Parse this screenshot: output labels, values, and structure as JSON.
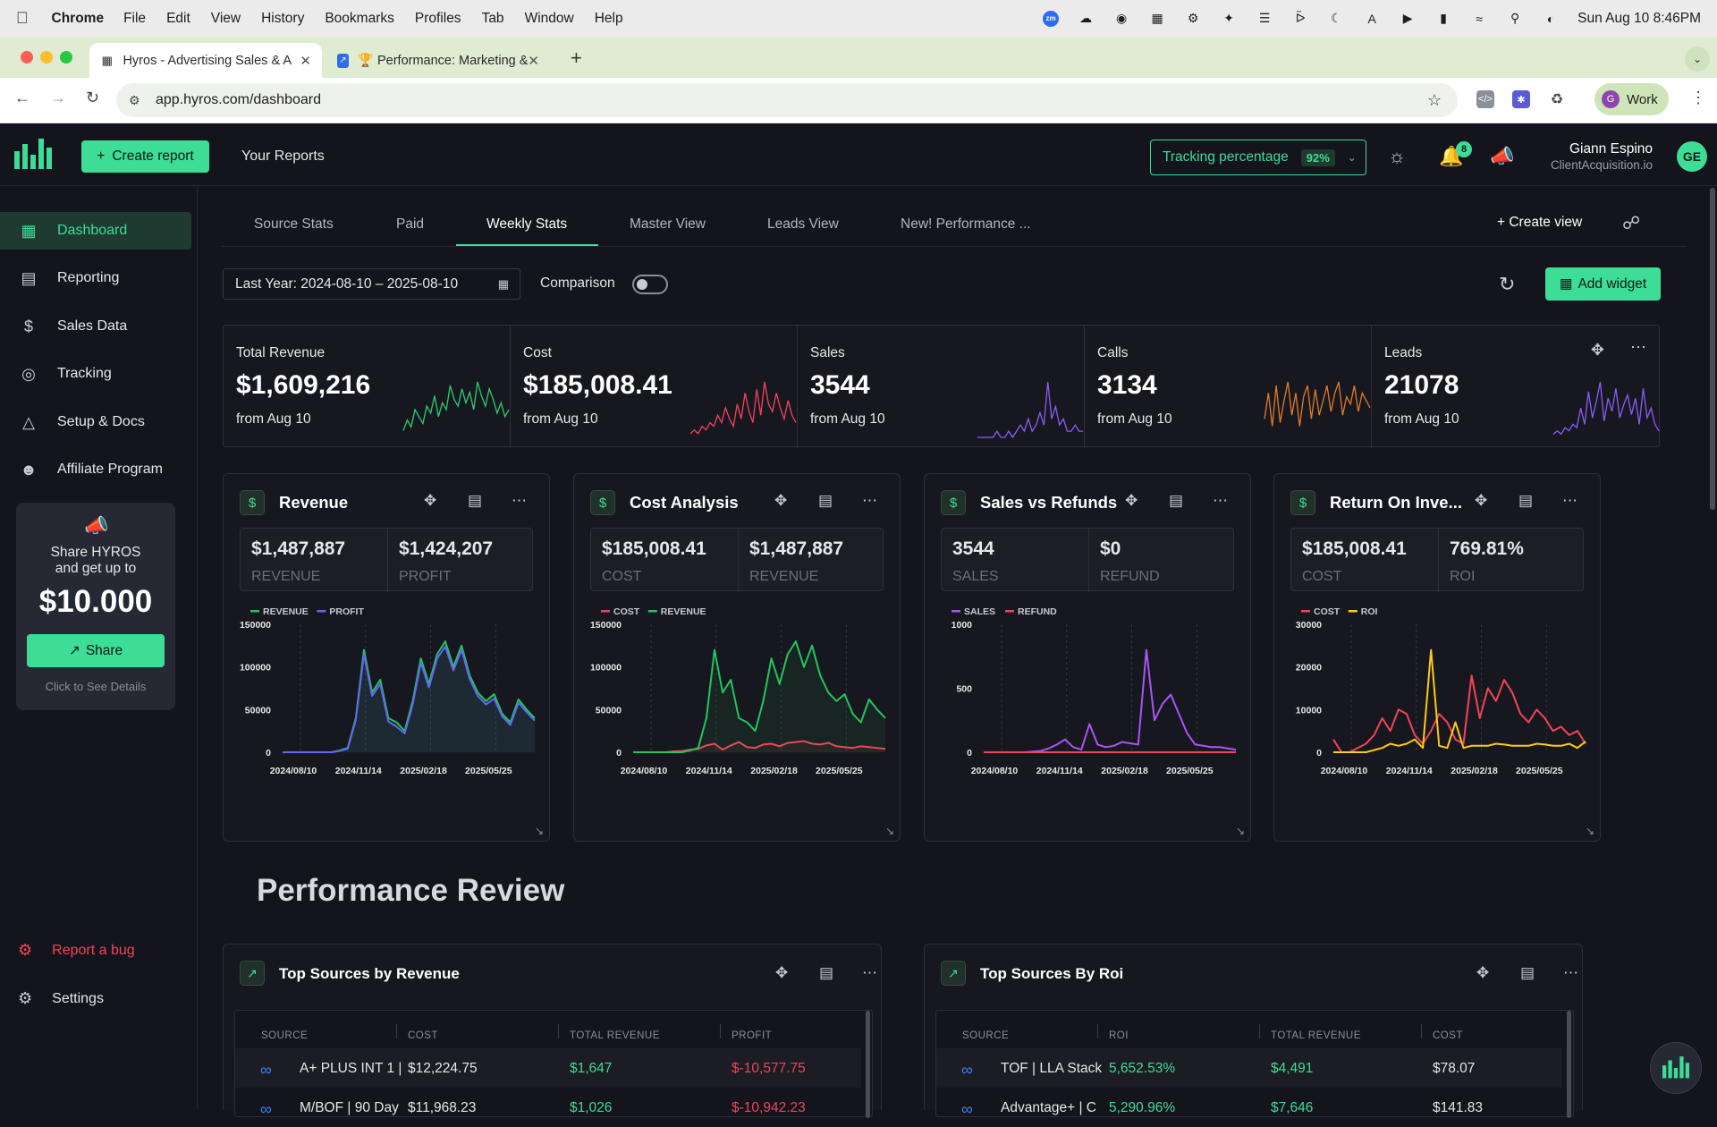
{
  "macos": {
    "app_name": "Chrome",
    "menus": [
      "File",
      "Edit",
      "View",
      "History",
      "Bookmarks",
      "Profiles",
      "Tab",
      "Window",
      "Help"
    ],
    "clock": "Sun Aug 10  8:46PM"
  },
  "browser": {
    "tabs": [
      {
        "title": "Hyros - Advertising Sales & A",
        "favicon": "hyros-logo-icon"
      },
      {
        "title": "🏆 Performance: Marketing &",
        "favicon": "chart-icon"
      }
    ],
    "url": "app.hyros.com/dashboard",
    "profile_label": "Work",
    "profile_initial": "G"
  },
  "header": {
    "create_report": "Create report",
    "your_reports": "Your Reports",
    "tracking_label": "Tracking percentage",
    "tracking_value": "92%",
    "notification_count": "8",
    "user_name": "Giann Espino",
    "user_company": "ClientAcquisition.io",
    "user_initials": "GE"
  },
  "sidebar": {
    "items": [
      {
        "label": "Dashboard",
        "icon": "grid-icon",
        "active": true
      },
      {
        "label": "Reporting",
        "icon": "report-icon"
      },
      {
        "label": "Sales Data",
        "icon": "dollar-icon"
      },
      {
        "label": "Tracking",
        "icon": "target-icon"
      },
      {
        "label": "Setup & Docs",
        "icon": "graduation-cap-icon"
      },
      {
        "label": "Affiliate Program",
        "icon": "users-icon"
      }
    ],
    "share_card": {
      "line1": "Share HYROS",
      "line2": "and get up to",
      "amount": "$10.000",
      "button": "Share",
      "hint": "Click to See Details"
    },
    "report_bug": "Report a bug",
    "settings": "Settings"
  },
  "view_tabs": [
    "Source Stats",
    "Paid",
    "Weekly Stats",
    "Master View",
    "Leads View",
    "New! Performance ..."
  ],
  "active_view_tab": "Weekly Stats",
  "create_view": "Create view",
  "date_range": "Last Year: 2024-08-10 – 2025-08-10",
  "comparison_label": "Comparison",
  "comparison_enabled": false,
  "add_widget": "Add widget",
  "stats": [
    {
      "label": "Total Revenue",
      "value": "$1,609,216",
      "from": "from Aug 10",
      "color": "#2ecc71",
      "spark": [
        2,
        5,
        3,
        8,
        6,
        4,
        9,
        7,
        12,
        6,
        10,
        8,
        15,
        11,
        9,
        14,
        10,
        13,
        8,
        16,
        12,
        9,
        14,
        11,
        7,
        10,
        6,
        8
      ]
    },
    {
      "label": "Cost",
      "value": "$185,008.41",
      "from": "from Aug 10",
      "color": "#f0445a",
      "spark": [
        1,
        2,
        1,
        3,
        2,
        4,
        3,
        6,
        4,
        8,
        5,
        3,
        9,
        5,
        12,
        7,
        4,
        13,
        6,
        15,
        9,
        7,
        12,
        8,
        5,
        10,
        6,
        4
      ]
    },
    {
      "label": "Sales",
      "value": "3544",
      "from": "from Aug 10",
      "color": "#8b5cf6",
      "spark": [
        0,
        0,
        0,
        0,
        0,
        1,
        0,
        0,
        1,
        0,
        1,
        2,
        1,
        3,
        1,
        2,
        4,
        2,
        9,
        3,
        5,
        2,
        3,
        1,
        1,
        2,
        1,
        1
      ]
    },
    {
      "label": "Calls",
      "value": "3134",
      "from": "from Aug 10",
      "color": "#e07b2a",
      "spark": [
        5,
        12,
        3,
        14,
        4,
        10,
        15,
        6,
        12,
        3,
        11,
        14,
        5,
        13,
        6,
        10,
        14,
        7,
        12,
        15,
        6,
        11,
        9,
        14,
        7,
        12,
        10,
        8
      ]
    },
    {
      "label": "Leads",
      "value": "21078",
      "from": "from Aug 10",
      "color": "#8b5cf6",
      "spark": [
        1,
        2,
        1,
        3,
        2,
        4,
        3,
        9,
        4,
        14,
        6,
        11,
        17,
        5,
        12,
        8,
        15,
        6,
        10,
        13,
        7,
        12,
        4,
        15,
        6,
        9,
        4,
        2
      ]
    }
  ],
  "widgets": [
    {
      "title": "Revenue",
      "kpis": [
        {
          "value": "$1,487,887",
          "label": "Revenue"
        },
        {
          "value": "$1,424,207",
          "label": "Profit"
        }
      ],
      "chart_data": {
        "type": "area",
        "x_ticks": [
          "2024/08/10",
          "2024/11/14",
          "2025/02/18",
          "2025/05/25"
        ],
        "ylim": [
          0,
          150000
        ],
        "y_ticks": [
          0,
          50000,
          100000,
          150000
        ],
        "series": [
          {
            "name": "REVENUE",
            "color": "#22c55e",
            "values": [
              0,
              0,
              0,
              0,
              0,
              0,
              0,
              2000,
              5000,
              40000,
              120000,
              70000,
              85000,
              40000,
              35000,
              25000,
              60000,
              110000,
              80000,
              115000,
              130000,
              100000,
              125000,
              90000,
              70000,
              60000,
              68000,
              45000,
              35000,
              62000,
              50000,
              40000
            ]
          },
          {
            "name": "PROFIT",
            "color": "#6366f1",
            "values": [
              0,
              0,
              0,
              0,
              0,
              0,
              0,
              1500,
              4000,
              38000,
              115000,
              66000,
              80000,
              36000,
              30000,
              22000,
              56000,
              105000,
              76000,
              110000,
              124000,
              96000,
              120000,
              86000,
              66000,
              56000,
              63000,
              42000,
              32000,
              58000,
              47000,
              37000
            ]
          }
        ]
      }
    },
    {
      "title": "Cost Analysis",
      "kpis": [
        {
          "value": "$185,008.41",
          "label": "Cost"
        },
        {
          "value": "$1,487,887",
          "label": "Revenue"
        }
      ],
      "chart_data": {
        "type": "area",
        "x_ticks": [
          "2024/08/10",
          "2024/11/14",
          "2025/02/18",
          "2025/05/25"
        ],
        "ylim": [
          0,
          150000
        ],
        "y_ticks": [
          0,
          50000,
          100000,
          150000
        ],
        "series": [
          {
            "name": "COST",
            "color": "#f0445a",
            "values": [
              0,
              0,
              0,
              0,
              0,
              1000,
              1500,
              3000,
              4000,
              8000,
              10000,
              3000,
              8000,
              12000,
              6000,
              5000,
              9000,
              10000,
              7000,
              11000,
              12000,
              13000,
              10000,
              9000,
              11000,
              7000,
              6000,
              5000,
              7000,
              6000,
              5000,
              4000
            ]
          },
          {
            "name": "REVENUE",
            "color": "#22c55e",
            "values": [
              0,
              0,
              0,
              0,
              0,
              0,
              0,
              2000,
              5000,
              40000,
              120000,
              70000,
              85000,
              40000,
              35000,
              25000,
              60000,
              110000,
              80000,
              115000,
              130000,
              100000,
              125000,
              90000,
              70000,
              60000,
              68000,
              45000,
              35000,
              62000,
              50000,
              40000
            ]
          }
        ]
      }
    },
    {
      "title": "Sales vs Refunds",
      "kpis": [
        {
          "value": "3544",
          "label": "Sales"
        },
        {
          "value": "$0",
          "label": "Refund"
        }
      ],
      "chart_data": {
        "type": "line",
        "x_ticks": [
          "2024/08/10",
          "2024/11/14",
          "2025/02/18",
          "2025/05/25"
        ],
        "ylim": [
          0,
          1000
        ],
        "y_ticks": [
          0,
          500,
          1000
        ],
        "series": [
          {
            "name": "SALES",
            "color": "#a855f7",
            "values": [
              0,
              0,
              0,
              0,
              0,
              0,
              5,
              10,
              30,
              60,
              100,
              40,
              20,
              220,
              60,
              40,
              50,
              80,
              70,
              60,
              800,
              250,
              380,
              450,
              300,
              150,
              60,
              50,
              40,
              40,
              30,
              20
            ]
          },
          {
            "name": "REFUND",
            "color": "#f0445a",
            "values": [
              0,
              0,
              0,
              0,
              0,
              0,
              0,
              0,
              0,
              0,
              0,
              0,
              0,
              0,
              0,
              0,
              0,
              0,
              0,
              0,
              0,
              0,
              0,
              0,
              0,
              0,
              0,
              0,
              0,
              0,
              0,
              0
            ]
          }
        ]
      }
    },
    {
      "title": "Return On Inve...",
      "kpis": [
        {
          "value": "$185,008.41",
          "label": "Cost"
        },
        {
          "value": "769.81%",
          "label": "ROI"
        }
      ],
      "chart_data": {
        "type": "line",
        "x_ticks": [
          "2024/08/10",
          "2024/11/14",
          "2025/02/18",
          "2025/05/25"
        ],
        "ylim": [
          0,
          30000
        ],
        "y_ticks": [
          0,
          10000,
          20000,
          30000
        ],
        "series": [
          {
            "name": "COST",
            "color": "#f0445a",
            "values": [
              3000,
              0,
              0,
              1000,
              2000,
              4000,
              8000,
              5000,
              10000,
              9000,
              4000,
              2000,
              5000,
              9000,
              7000,
              3000,
              2000,
              18000,
              8000,
              15000,
              12000,
              17000,
              14000,
              9000,
              7000,
              10000,
              8000,
              5000,
              6000,
              4000,
              5000,
              2000
            ]
          },
          {
            "name": "ROI",
            "color": "#facc15",
            "values": [
              0,
              0,
              0,
              0,
              0,
              500,
              1000,
              2000,
              1500,
              2000,
              3000,
              1000,
              24000,
              1500,
              1000,
              7000,
              1000,
              1500,
              1500,
              1500,
              2000,
              1800,
              1500,
              1500,
              1500,
              2000,
              1800,
              1500,
              1500,
              2000,
              1000,
              2500
            ]
          }
        ]
      }
    }
  ],
  "performance_title": "Performance Review",
  "tables": [
    {
      "title": "Top Sources by Revenue",
      "columns": [
        "SOURCE",
        "COST",
        "TOTAL REVENUE",
        "PROFIT"
      ],
      "rows": [
        [
          "A+ PLUS INT 1 |",
          "$12,224.75",
          "$1,647",
          "$-10,577.75"
        ],
        [
          "M/BOF | 90 Day",
          "$11,968.23",
          "$1,026",
          "$-10,942.23"
        ]
      ]
    },
    {
      "title": "Top Sources By Roi",
      "columns": [
        "SOURCE",
        "ROI",
        "TOTAL REVENUE",
        "COST"
      ],
      "rows": [
        [
          "TOF | LLA Stack",
          "5,652.53%",
          "$4,491",
          "$78.07"
        ],
        [
          "Advantage+ | C",
          "5,290.96%",
          "$7,646",
          "$141.83"
        ]
      ]
    }
  ]
}
